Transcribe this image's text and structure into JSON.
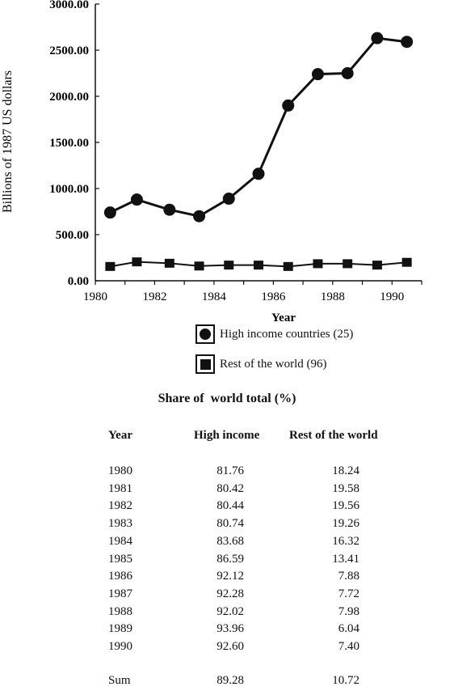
{
  "chart_data": {
    "type": "line",
    "ylabel": "Billions of 1987 US dollars",
    "xlabel": "Year",
    "ylim": [
      0,
      3000
    ],
    "xlim": [
      1980,
      1991
    ],
    "y_ticks": [
      "0.00",
      "500.00",
      "1000.00",
      "1500.00",
      "2000.00",
      "2500.00",
      "3000.00"
    ],
    "x_ticks": [
      "1980",
      "1982",
      "1984",
      "1986",
      "1988",
      "1990"
    ],
    "x": [
      1980.5,
      1981.4,
      1982.5,
      1983.5,
      1984.5,
      1985.5,
      1986.5,
      1987.5,
      1988.5,
      1989.5,
      1990.5
    ],
    "series": [
      {
        "name": "High income countries (25)",
        "marker": "circle",
        "values": [
          740,
          880,
          770,
          700,
          890,
          1160,
          1900,
          2240,
          2250,
          2630,
          2590
        ]
      },
      {
        "name": "Rest of the world (96)",
        "marker": "square",
        "values": [
          155,
          205,
          190,
          160,
          170,
          170,
          155,
          185,
          185,
          170,
          200
        ]
      }
    ]
  },
  "legend": {
    "high": "High income countries (25)",
    "rest": "Rest of the world (96)"
  },
  "table": {
    "title": "Share of  world total (%)",
    "headers": [
      "Year",
      "High income",
      "Rest of the world"
    ],
    "rows": [
      [
        "1980",
        "81.76",
        "18.24"
      ],
      [
        "1981",
        "80.42",
        "19.58"
      ],
      [
        "1982",
        "80.44",
        "19.56"
      ],
      [
        "1983",
        "80.74",
        "19.26"
      ],
      [
        "1984",
        "83.68",
        "16.32"
      ],
      [
        "1985",
        "86.59",
        "13.41"
      ],
      [
        "1986",
        "92.12",
        "7.88"
      ],
      [
        "1987",
        "92.28",
        "7.72"
      ],
      [
        "1988",
        "92.02",
        "7.98"
      ],
      [
        "1989",
        "93.96",
        "6.04"
      ],
      [
        "1990",
        "92.60",
        "7.40"
      ]
    ],
    "sum": [
      "Sum",
      "89.28",
      "10.72"
    ]
  }
}
